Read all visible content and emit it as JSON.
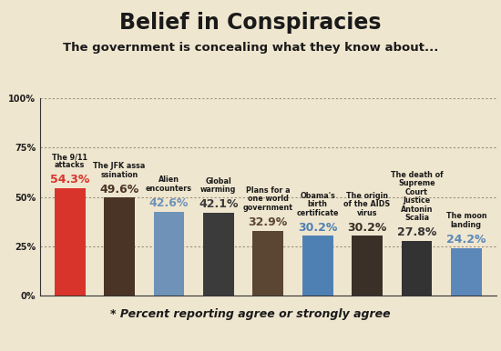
{
  "chart_data": {
    "type": "bar",
    "title": "Belief in Conspiracies",
    "subtitle": "The government is concealing what they know about...",
    "annotations": [
      "* Percent reporting agree or strongly agree"
    ],
    "categories": [
      "The 9/11 attacks",
      "The JFK assassination",
      "Alien encounters",
      "Global warming",
      "Plans for a one world government",
      "Obama's birth certificate",
      "The origin of the AIDS virus",
      "The death of Supreme Court Justice Antonin Scalia",
      "The moon landing"
    ],
    "values": [
      54.3,
      49.6,
      42.6,
      42.1,
      32.9,
      30.2,
      30.2,
      27.8,
      24.2
    ],
    "value_labels": [
      "54.3%",
      "49.6%",
      "42.6%",
      "42.1%",
      "32.9%",
      "30.2%",
      "30.2%",
      "27.8%",
      "24.2%"
    ],
    "colors": [
      "#d9342b",
      "#4a3426",
      "#6f93b8",
      "#3b3b3b",
      "#5a4632",
      "#4f80b3",
      "#3b3028",
      "#333333",
      "#5b88b8"
    ],
    "ylim": [
      0,
      100
    ],
    "yticks": [
      {
        "value": 0,
        "label": "0%"
      },
      {
        "value": 25,
        "label": "25%"
      },
      {
        "value": 50,
        "label": "50%"
      },
      {
        "value": 75,
        "label": "75%"
      },
      {
        "value": 100,
        "label": "100%"
      }
    ],
    "grid": true,
    "data_labels": true,
    "tick_labels": "y"
  }
}
